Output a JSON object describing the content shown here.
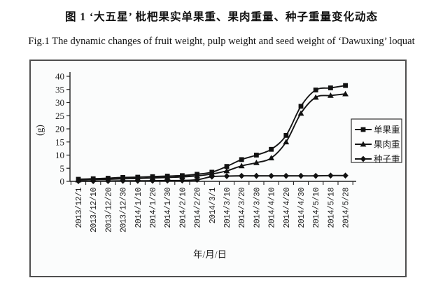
{
  "figure": {
    "title_zh": "图 1  ‘大五星’ 枇杷果实单果重、果肉重量、种子重量变化动态",
    "caption_en": "Fig.1 The dynamic changes of fruit weight, pulp weight and seed weight of ‘Dawuxing’ loquat"
  },
  "chart_data": {
    "type": "line",
    "x": [
      "2013/12/1",
      "2013/12/10",
      "2013/12/20",
      "2013/12/30",
      "2014/1/10",
      "2014/1/20",
      "2014/1/30",
      "2014/2/10",
      "2014/2/20",
      "2014/3/1",
      "2014/3/10",
      "2014/3/20",
      "2014/3/30",
      "2014/4/10",
      "2014/4/20",
      "2014/4/30",
      "2014/5/10",
      "2014/5/18",
      "2014/5/28"
    ],
    "series": [
      {
        "key": "fruit-weight",
        "name": "单果重",
        "marker": "square",
        "values": [
          0.8,
          1.0,
          1.2,
          1.5,
          1.6,
          1.8,
          2.0,
          2.2,
          2.7,
          3.5,
          5.7,
          8.3,
          10.0,
          12.2,
          17.5,
          28.6,
          34.8,
          35.6,
          36.5
        ]
      },
      {
        "key": "pulp-weight",
        "name": "果肉重",
        "marker": "triangle",
        "values": [
          0.5,
          0.7,
          0.8,
          1.0,
          1.1,
          1.3,
          1.5,
          1.7,
          2.1,
          2.8,
          4.0,
          5.9,
          7.1,
          8.9,
          15.0,
          25.9,
          32.0,
          32.7,
          33.3
        ]
      },
      {
        "key": "seed-weight",
        "name": "种子重",
        "marker": "diamond",
        "values": [
          0.1,
          0.1,
          0.15,
          0.2,
          0.2,
          0.25,
          0.3,
          0.35,
          0.6,
          1.8,
          2.0,
          2.1,
          2.1,
          2.1,
          2.1,
          2.1,
          2.1,
          2.2,
          2.2
        ]
      }
    ],
    "xlabel": "年/月/日",
    "ylabel": "(g)",
    "ylim": [
      0,
      40
    ],
    "ytick_step": 5,
    "grid": false,
    "legend_position": "inside-right",
    "colors": {
      "line": "#141414",
      "text": "#1f1f1f",
      "frame_border": "#4f4f4f",
      "background": "#fbfcfc"
    }
  }
}
